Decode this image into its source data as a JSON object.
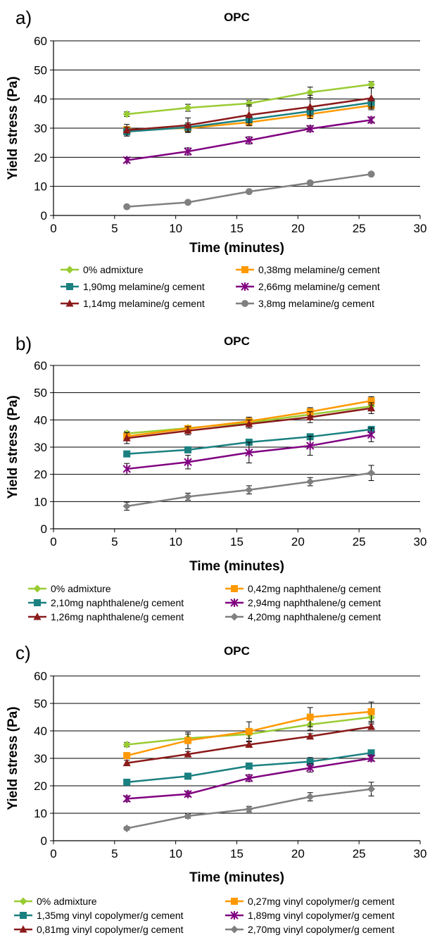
{
  "chart_data": [
    {
      "type": "line",
      "panel_label": "a)",
      "title": "OPC",
      "xlabel": "Time (minutes)",
      "ylabel": "Yield stress (Pa)",
      "xlim": [
        0,
        30
      ],
      "ylim": [
        0,
        60
      ],
      "x_ticks": [
        "0",
        "5",
        "10",
        "15",
        "20",
        "25",
        "30"
      ],
      "y_ticks": [
        "0",
        "10",
        "20",
        "30",
        "40",
        "50",
        "60"
      ],
      "grid": "horizontal",
      "legend_position": "bottom",
      "x": [
        6,
        11,
        16,
        21,
        26
      ],
      "series": [
        {
          "name": "0% admixture",
          "color": "#99cc33",
          "marker": "diamond",
          "values": [
            34.8,
            37.0,
            38.5,
            42.3,
            45.0
          ],
          "errors": [
            0.8,
            1.2,
            1.0,
            1.8,
            1.0
          ]
        },
        {
          "name": "0,38mg melamine/g cement",
          "color": "#ff9900",
          "marker": "square",
          "values": [
            29.5,
            30.0,
            32.0,
            34.8,
            37.8
          ],
          "errors": [
            1.0,
            1.0,
            1.2,
            1.5,
            1.5
          ]
        },
        {
          "name": "1,90mg melamine/g cement",
          "color": "#1a8080",
          "marker": "square",
          "values": [
            28.8,
            30.3,
            33.0,
            35.8,
            38.8
          ],
          "errors": [
            1.5,
            1.5,
            1.2,
            1.5,
            1.5
          ]
        },
        {
          "name": "2,66mg melamine/g cement",
          "color": "#800080",
          "marker": "asterisk",
          "values": [
            19.0,
            22.0,
            25.8,
            29.8,
            32.8
          ],
          "errors": [
            0.8,
            1.2,
            1.2,
            1.0,
            1.0
          ]
        },
        {
          "name": "1,14mg melamine/g cement",
          "color": "#8b1a1a",
          "marker": "triangle",
          "values": [
            29.3,
            31.0,
            34.5,
            37.3,
            40.3
          ],
          "errors": [
            2.0,
            2.5,
            3.5,
            4.0,
            3.5
          ]
        },
        {
          "name": "3,8mg melamine/g cement",
          "color": "#808080",
          "marker": "circle",
          "values": [
            3.0,
            4.5,
            8.2,
            11.2,
            14.2
          ],
          "errors": [
            0.4,
            0.5,
            0.6,
            0.6,
            0.6
          ]
        }
      ]
    },
    {
      "type": "line",
      "panel_label": "b)",
      "title": "OPC",
      "xlabel": "Time (minutes)",
      "ylabel": "Yield stress (Pa)",
      "xlim": [
        0,
        30
      ],
      "ylim": [
        0,
        60
      ],
      "x_ticks": [
        "0",
        "5",
        "10",
        "15",
        "20",
        "25",
        "30"
      ],
      "y_ticks": [
        "0",
        "10",
        "20",
        "30",
        "40",
        "50",
        "60"
      ],
      "grid": "horizontal",
      "legend_position": "bottom",
      "x": [
        6,
        11,
        16,
        21,
        26
      ],
      "series": [
        {
          "name": "0% admixture",
          "color": "#99cc33",
          "marker": "diamond",
          "values": [
            35.0,
            37.0,
            39.0,
            42.0,
            45.0
          ],
          "errors": [
            0.8,
            0.8,
            1.0,
            1.5,
            1.0
          ]
        },
        {
          "name": "0,42mg naphthalene/g cement",
          "color": "#ff9900",
          "marker": "square",
          "values": [
            34.0,
            36.8,
            39.5,
            43.0,
            47.0
          ],
          "errors": [
            1.0,
            1.0,
            1.5,
            1.5,
            1.5
          ]
        },
        {
          "name": "2,10mg naphthalene/g cement",
          "color": "#1a8080",
          "marker": "square",
          "values": [
            27.5,
            29.0,
            31.8,
            33.8,
            36.5
          ],
          "errors": [
            1.0,
            1.0,
            1.0,
            1.0,
            1.0
          ]
        },
        {
          "name": "2,94mg naphthalene/g cement",
          "color": "#800080",
          "marker": "asterisk",
          "values": [
            22.0,
            24.5,
            28.0,
            30.5,
            34.5
          ],
          "errors": [
            2.0,
            2.5,
            3.8,
            3.5,
            2.5
          ]
        },
        {
          "name": "1,26mg naphthalene/g cement",
          "color": "#8b1a1a",
          "marker": "triangle",
          "values": [
            33.3,
            36.0,
            38.5,
            41.0,
            44.3
          ],
          "errors": [
            2.0,
            1.5,
            1.5,
            2.0,
            2.0
          ]
        },
        {
          "name": "4,20mg naphthalene/g cement",
          "color": "#808080",
          "marker": "diamond",
          "values": [
            8.3,
            11.8,
            14.3,
            17.3,
            20.5
          ],
          "errors": [
            1.5,
            1.3,
            1.5,
            1.5,
            2.8
          ]
        }
      ]
    },
    {
      "type": "line",
      "panel_label": "c)",
      "title": "OPC",
      "xlabel": "Time (minutes)",
      "ylabel": "Yield stress (Pa)",
      "xlim": [
        0,
        30
      ],
      "ylim": [
        0,
        60
      ],
      "x_ticks": [
        "0",
        "5",
        "10",
        "15",
        "20",
        "25",
        "30"
      ],
      "y_ticks": [
        "0",
        "10",
        "20",
        "30",
        "40",
        "50",
        "60"
      ],
      "grid": "horizontal",
      "legend_position": "bottom",
      "x": [
        6,
        11,
        16,
        21,
        26
      ],
      "series": [
        {
          "name": "0%  admixture",
          "color": "#99cc33",
          "marker": "diamond",
          "values": [
            35.0,
            37.3,
            38.8,
            42.3,
            45.0
          ],
          "errors": [
            0.8,
            1.5,
            1.5,
            2.0,
            2.0
          ]
        },
        {
          "name": "0,27mg vinyl copolymer/g cement",
          "color": "#ff9900",
          "marker": "square",
          "values": [
            31.0,
            36.5,
            39.8,
            45.0,
            47.0
          ],
          "errors": [
            1.0,
            3.0,
            3.5,
            3.5,
            3.5
          ]
        },
        {
          "name": "1,35mg vinyl copolymer/g cement",
          "color": "#1a8080",
          "marker": "square",
          "values": [
            21.3,
            23.5,
            27.2,
            28.8,
            32.0
          ],
          "errors": [
            0.8,
            0.8,
            1.0,
            1.5,
            1.0
          ]
        },
        {
          "name": "1,89mg vinyl copolymer/g cement",
          "color": "#800080",
          "marker": "asterisk",
          "values": [
            15.3,
            17.0,
            22.8,
            26.5,
            30.0
          ],
          "errors": [
            1.0,
            1.0,
            1.2,
            1.5,
            1.0
          ]
        },
        {
          "name": "0,81mg vinyl copolymer/g cement",
          "color": "#8b1a1a",
          "marker": "triangle",
          "values": [
            28.3,
            31.5,
            35.0,
            38.0,
            41.5
          ],
          "errors": [
            1.0,
            1.0,
            1.0,
            1.0,
            1.0
          ]
        },
        {
          "name": "2,70mg vinyl copolymer/g cement",
          "color": "#808080",
          "marker": "diamond",
          "values": [
            4.5,
            9.0,
            11.5,
            16.0,
            18.8
          ],
          "errors": [
            0.6,
            0.8,
            1.0,
            1.5,
            2.5
          ]
        }
      ]
    }
  ]
}
